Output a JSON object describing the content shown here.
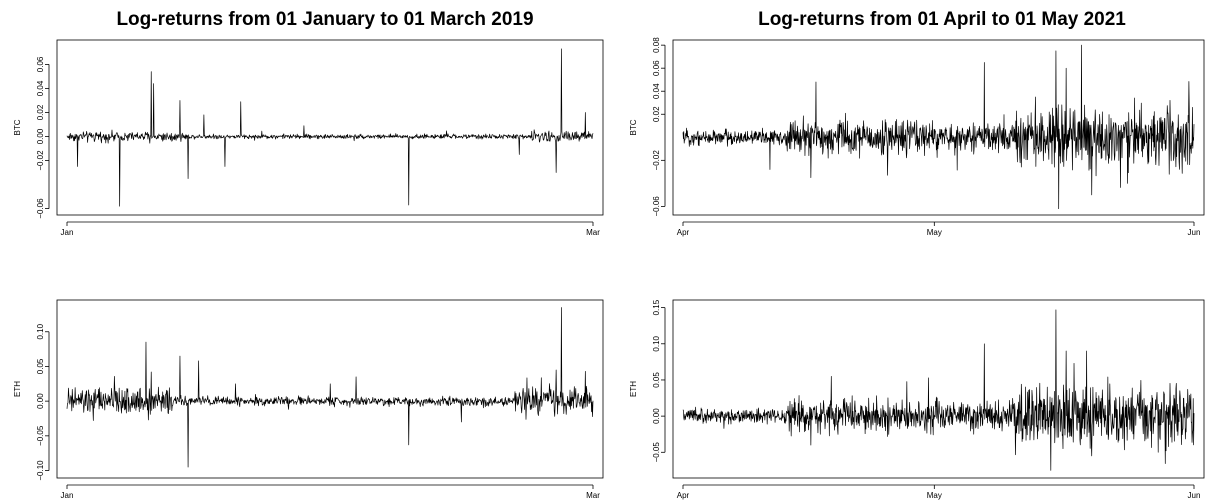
{
  "titles": {
    "left": "Log-returns from 01 January to 01 March 2019",
    "right": "Log-returns from 01 April to 01 May 2021"
  },
  "colors": {
    "line": "#000000",
    "frame": "#000000",
    "background": "#ffffff"
  },
  "chart_data": [
    {
      "type": "line",
      "ylabel": "BTC",
      "xlim": [
        0,
        59
      ],
      "ylim": [
        -0.062,
        0.077
      ],
      "xticks": [
        {
          "pos": 0,
          "label": "Jan"
        },
        {
          "pos": 59,
          "label": "Mar"
        }
      ],
      "yticks": [
        {
          "v": -0.06,
          "label": "−0.06"
        },
        {
          "v": -0.02,
          "label": "−0.02"
        },
        {
          "v": 0.0,
          "label": "0.00"
        },
        {
          "v": 0.02,
          "label": "0.02"
        },
        {
          "v": 0.04,
          "label": "0.04"
        },
        {
          "v": 0.06,
          "label": "0.06"
        }
      ],
      "grid": false,
      "noise": {
        "n": 1100,
        "base": 0.0012,
        "bursts": [
          {
            "from": 0.0,
            "to": 0.22,
            "amp": 0.0025
          },
          {
            "from": 0.88,
            "to": 1.0,
            "amp": 0.003
          }
        ]
      },
      "spikes": [
        [
          0.02,
          -0.025
        ],
        [
          0.1,
          -0.058
        ],
        [
          0.16,
          0.054
        ],
        [
          0.165,
          0.044
        ],
        [
          0.215,
          0.03
        ],
        [
          0.23,
          -0.035
        ],
        [
          0.26,
          0.018
        ],
        [
          0.3,
          -0.025
        ],
        [
          0.33,
          0.029
        ],
        [
          0.45,
          0.009
        ],
        [
          0.65,
          -0.057
        ],
        [
          0.86,
          -0.015
        ],
        [
          0.93,
          -0.03
        ],
        [
          0.94,
          0.073
        ],
        [
          0.985,
          0.02
        ]
      ]
    },
    {
      "type": "line",
      "ylabel": "ETH",
      "xlim": [
        0,
        59
      ],
      "ylim": [
        -0.105,
        0.14
      ],
      "xticks": [
        {
          "pos": 0,
          "label": "Jan"
        },
        {
          "pos": 59,
          "label": "Mar"
        }
      ],
      "yticks": [
        {
          "v": -0.1,
          "label": "−0.10"
        },
        {
          "v": -0.05,
          "label": "−0.05"
        },
        {
          "v": 0.0,
          "label": "0.00"
        },
        {
          "v": 0.05,
          "label": "0.05"
        },
        {
          "v": 0.1,
          "label": "0.10"
        }
      ],
      "grid": false,
      "noise": {
        "n": 1100,
        "base": 0.004,
        "bursts": [
          {
            "from": 0.0,
            "to": 0.2,
            "amp": 0.012
          },
          {
            "from": 0.85,
            "to": 1.0,
            "amp": 0.012
          }
        ]
      },
      "spikes": [
        [
          0.05,
          -0.028
        ],
        [
          0.15,
          0.085
        ],
        [
          0.16,
          0.042
        ],
        [
          0.215,
          0.065
        ],
        [
          0.23,
          -0.095
        ],
        [
          0.25,
          0.058
        ],
        [
          0.32,
          0.025
        ],
        [
          0.5,
          0.025
        ],
        [
          0.55,
          0.035
        ],
        [
          0.65,
          -0.063
        ],
        [
          0.75,
          -0.03
        ],
        [
          0.93,
          0.045
        ],
        [
          0.94,
          0.135
        ],
        [
          0.985,
          0.043
        ]
      ]
    },
    {
      "type": "line",
      "ylabel": "BTC",
      "xlim": [
        0,
        61
      ],
      "ylim": [
        -0.064,
        0.081
      ],
      "xticks": [
        {
          "pos": 0,
          "label": "Apr"
        },
        {
          "pos": 30,
          "label": "May"
        },
        {
          "pos": 61,
          "label": "Jun"
        }
      ],
      "yticks": [
        {
          "v": -0.06,
          "label": "−0.06"
        },
        {
          "v": -0.02,
          "label": "−0.02"
        },
        {
          "v": 0.02,
          "label": "0.02"
        },
        {
          "v": 0.04,
          "label": "0.04"
        },
        {
          "v": 0.06,
          "label": "0.06"
        },
        {
          "v": 0.08,
          "label": "0.08"
        }
      ],
      "grid": false,
      "noise": {
        "n": 1300,
        "base": 0.004,
        "bursts": [
          {
            "from": 0.2,
            "to": 0.5,
            "amp": 0.009
          },
          {
            "from": 0.5,
            "to": 0.65,
            "amp": 0.007
          },
          {
            "from": 0.65,
            "to": 1.0,
            "amp": 0.016
          }
        ]
      },
      "spikes": [
        [
          0.17,
          -0.028
        ],
        [
          0.25,
          -0.035
        ],
        [
          0.26,
          0.048
        ],
        [
          0.4,
          -0.033
        ],
        [
          0.59,
          0.065
        ],
        [
          0.69,
          0.035
        ],
        [
          0.73,
          0.075
        ],
        [
          0.735,
          -0.062
        ],
        [
          0.75,
          0.06
        ],
        [
          0.78,
          0.08
        ],
        [
          0.8,
          0.045
        ],
        [
          0.8,
          -0.05
        ],
        [
          0.87,
          -0.04
        ]
      ]
    },
    {
      "type": "line",
      "ylabel": "ETH",
      "xlim": [
        0,
        61
      ],
      "ylim": [
        -0.08,
        0.155
      ],
      "xticks": [
        {
          "pos": 0,
          "label": "Apr"
        },
        {
          "pos": 30,
          "label": "May"
        },
        {
          "pos": 61,
          "label": "Jun"
        }
      ],
      "yticks": [
        {
          "v": -0.05,
          "label": "−0.05"
        },
        {
          "v": 0.0,
          "label": "0.00"
        },
        {
          "v": 0.05,
          "label": "0.05"
        },
        {
          "v": 0.1,
          "label": "0.10"
        },
        {
          "v": 0.15,
          "label": "0.15"
        }
      ],
      "grid": false,
      "noise": {
        "n": 1300,
        "base": 0.006,
        "bursts": [
          {
            "from": 0.2,
            "to": 0.5,
            "amp": 0.014
          },
          {
            "from": 0.5,
            "to": 0.65,
            "amp": 0.012
          },
          {
            "from": 0.65,
            "to": 1.0,
            "amp": 0.026
          }
        ]
      },
      "spikes": [
        [
          0.25,
          -0.04
        ],
        [
          0.29,
          0.055
        ],
        [
          0.48,
          0.053
        ],
        [
          0.59,
          0.1
        ],
        [
          0.72,
          -0.075
        ],
        [
          0.73,
          0.147
        ],
        [
          0.75,
          0.09
        ],
        [
          0.79,
          0.09
        ],
        [
          0.8,
          -0.055
        ],
        [
          0.93,
          -0.05
        ]
      ]
    }
  ]
}
